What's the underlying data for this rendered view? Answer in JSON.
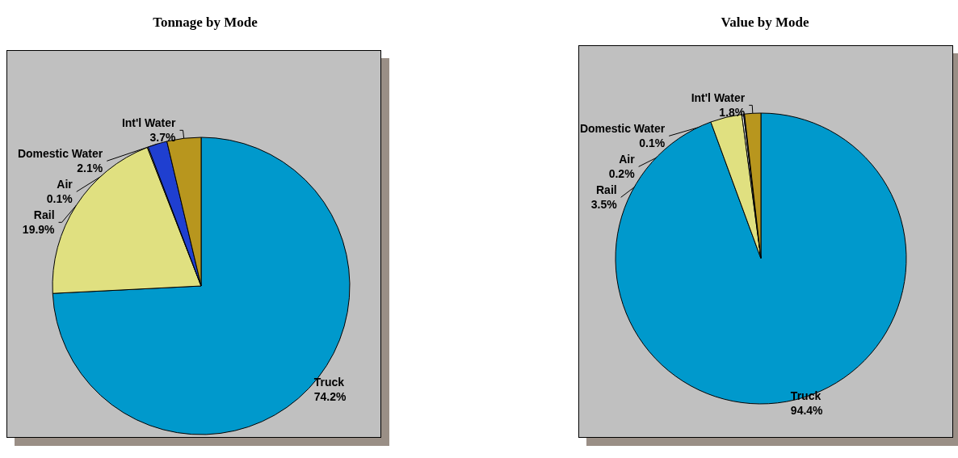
{
  "chart_data": [
    {
      "type": "pie",
      "title": "Tonnage by Mode",
      "categories": [
        "Truck",
        "Rail",
        "Air",
        "Domestic Water",
        "Int'l Water"
      ],
      "values": [
        74.2,
        19.9,
        0.1,
        2.1,
        3.7
      ],
      "value_labels": [
        "74.2%",
        "19.9%",
        "0.1%",
        "2.1%",
        "3.7%"
      ],
      "colors": [
        "#0099cc",
        "#e0e080",
        "#ffffff",
        "#1f3fd0",
        "#b8961e"
      ]
    },
    {
      "type": "pie",
      "title": "Value by Mode",
      "categories": [
        "Truck",
        "Rail",
        "Air",
        "Domestic Water",
        "Int'l Water"
      ],
      "values": [
        94.4,
        3.5,
        0.2,
        0.1,
        1.8
      ],
      "value_labels": [
        "94.4%",
        "3.5%",
        "0.2%",
        "0.1%",
        "1.8%"
      ],
      "colors": [
        "#0099cc",
        "#e0e080",
        "#ffffff",
        "#1f3fd0",
        "#b8961e"
      ]
    }
  ]
}
